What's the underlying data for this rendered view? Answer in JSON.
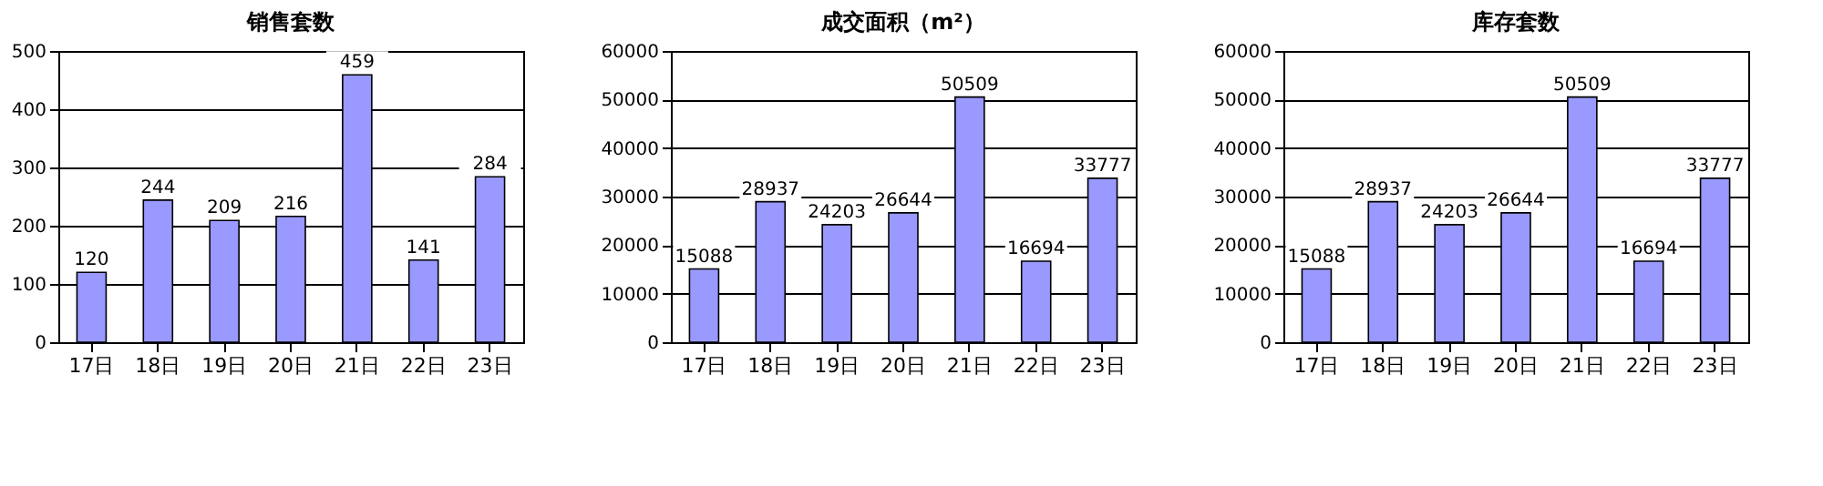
{
  "chart_data": [
    {
      "type": "bar",
      "title": "销售套数",
      "categories": [
        "17日",
        "18日",
        "19日",
        "20日",
        "21日",
        "22日",
        "23日"
      ],
      "values": [
        120,
        244,
        209,
        216,
        459,
        141,
        284
      ],
      "color": "#9999ff",
      "ylim": [
        0,
        500
      ],
      "yticks": [
        0,
        100,
        200,
        300,
        400,
        500
      ],
      "grid": "y",
      "data_labels": true
    },
    {
      "type": "bar",
      "title": "成交面积（m²）",
      "categories": [
        "17日",
        "18日",
        "19日",
        "20日",
        "21日",
        "22日",
        "23日"
      ],
      "values": [
        15088,
        28937,
        24203,
        26644,
        50509,
        16694,
        33777
      ],
      "color": "#9999ff",
      "ylim": [
        0,
        60000
      ],
      "yticks": [
        0,
        10000,
        20000,
        30000,
        40000,
        50000,
        60000
      ],
      "grid": "y",
      "data_labels": true
    },
    {
      "type": "bar",
      "title": "库存套数",
      "categories": [
        "17日",
        "18日",
        "19日",
        "20日",
        "21日",
        "22日",
        "23日"
      ],
      "values": [
        15088,
        28937,
        24203,
        26644,
        50509,
        16694,
        33777
      ],
      "color": "#9999ff",
      "ylim": [
        0,
        60000
      ],
      "yticks": [
        0,
        10000,
        20000,
        30000,
        40000,
        50000,
        60000
      ],
      "grid": "y",
      "data_labels": true
    }
  ]
}
